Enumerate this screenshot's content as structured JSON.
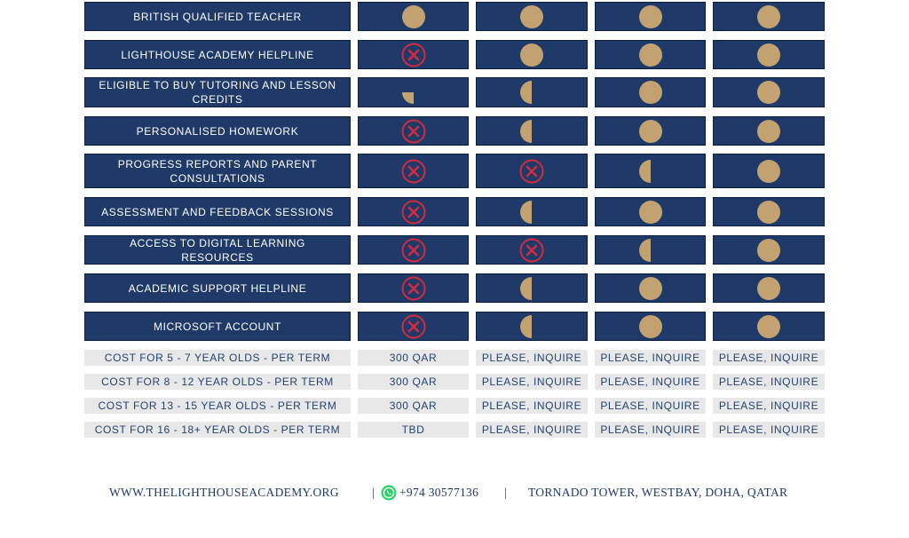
{
  "colors": {
    "navy": "#1f3a68",
    "gold": "#c3a271",
    "cross": "#d22b3f",
    "cost_bg": "#e8e8e8",
    "whatsapp": "#25d366"
  },
  "features": [
    {
      "label": "BRITISH QUALIFIED TEACHER",
      "marks": [
        "full",
        "full",
        "full",
        "full"
      ]
    },
    {
      "label": "LIGHTHOUSE ACADEMY HELPLINE",
      "marks": [
        "cross",
        "full",
        "full",
        "full"
      ]
    },
    {
      "label": "ELIGIBLE TO BUY TUTORING AND LESSON CREDITS",
      "marks": [
        "quarter",
        "half",
        "full",
        "full"
      ]
    },
    {
      "label": "PERSONALISED HOMEWORK",
      "marks": [
        "cross",
        "half",
        "full",
        "full"
      ]
    },
    {
      "label": "PROGRESS REPORTS AND PARENT CONSULTATIONS",
      "marks": [
        "cross",
        "cross",
        "half",
        "full"
      ]
    },
    {
      "label": "ASSESSMENT AND FEEDBACK SESSIONS",
      "marks": [
        "cross",
        "half",
        "full",
        "full"
      ]
    },
    {
      "label": "ACCESS TO DIGITAL LEARNING RESOURCES",
      "marks": [
        "cross",
        "cross",
        "half",
        "full"
      ]
    },
    {
      "label": "ACADEMIC SUPPORT HELPLINE",
      "marks": [
        "cross",
        "half",
        "full",
        "full"
      ]
    },
    {
      "label": "MICROSOFT ACCOUNT",
      "marks": [
        "cross",
        "half",
        "full",
        "full"
      ]
    }
  ],
  "costs": [
    {
      "label": "COST FOR 5 - 7 YEAR OLDS - PER TERM",
      "values": [
        "300 QAR",
        "PLEASE, INQUIRE",
        "PLEASE, INQUIRE",
        "PLEASE, INQUIRE"
      ]
    },
    {
      "label": "COST FOR 8 - 12 YEAR OLDS - PER TERM",
      "values": [
        "300 QAR",
        "PLEASE, INQUIRE",
        "PLEASE, INQUIRE",
        "PLEASE, INQUIRE"
      ]
    },
    {
      "label": "COST FOR 13 - 15 YEAR OLDS - PER TERM",
      "values": [
        "300 QAR",
        "PLEASE, INQUIRE",
        "PLEASE, INQUIRE",
        "PLEASE, INQUIRE"
      ]
    },
    {
      "label": "COST FOR 16 - 18+ YEAR OLDS - PER TERM",
      "values": [
        "TBD",
        "PLEASE, INQUIRE",
        "PLEASE, INQUIRE",
        "PLEASE, INQUIRE"
      ]
    }
  ],
  "footer": {
    "website": "WWW.THELIGHTHOUSEACADEMY.ORG",
    "separator": "|",
    "phone_icon": "whatsapp-icon",
    "phone": "+974 30577136",
    "address": "TORNADO TOWER, WESTBAY, DOHA, QATAR"
  }
}
